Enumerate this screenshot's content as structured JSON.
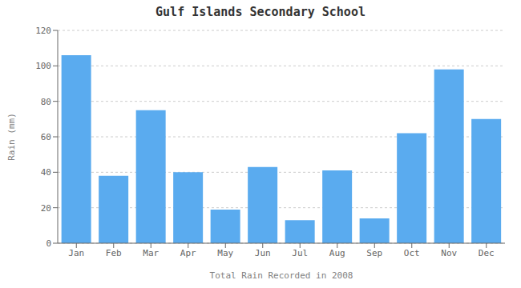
{
  "chart_data": {
    "type": "bar",
    "title": "Gulf Islands Secondary School",
    "xlabel": "Total Rain Recorded in 2008",
    "ylabel": "Rain (mm)",
    "categories": [
      "Jan",
      "Feb",
      "Mar",
      "Apr",
      "May",
      "Jun",
      "Jul",
      "Aug",
      "Sep",
      "Oct",
      "Nov",
      "Dec"
    ],
    "values": [
      106,
      38,
      75,
      40,
      19,
      43,
      13,
      41,
      14,
      62,
      98,
      70
    ],
    "color": "#5aabef",
    "ylim": [
      0,
      120
    ],
    "yticks": [
      0,
      20,
      40,
      60,
      80,
      100,
      120
    ],
    "grid": true
  }
}
